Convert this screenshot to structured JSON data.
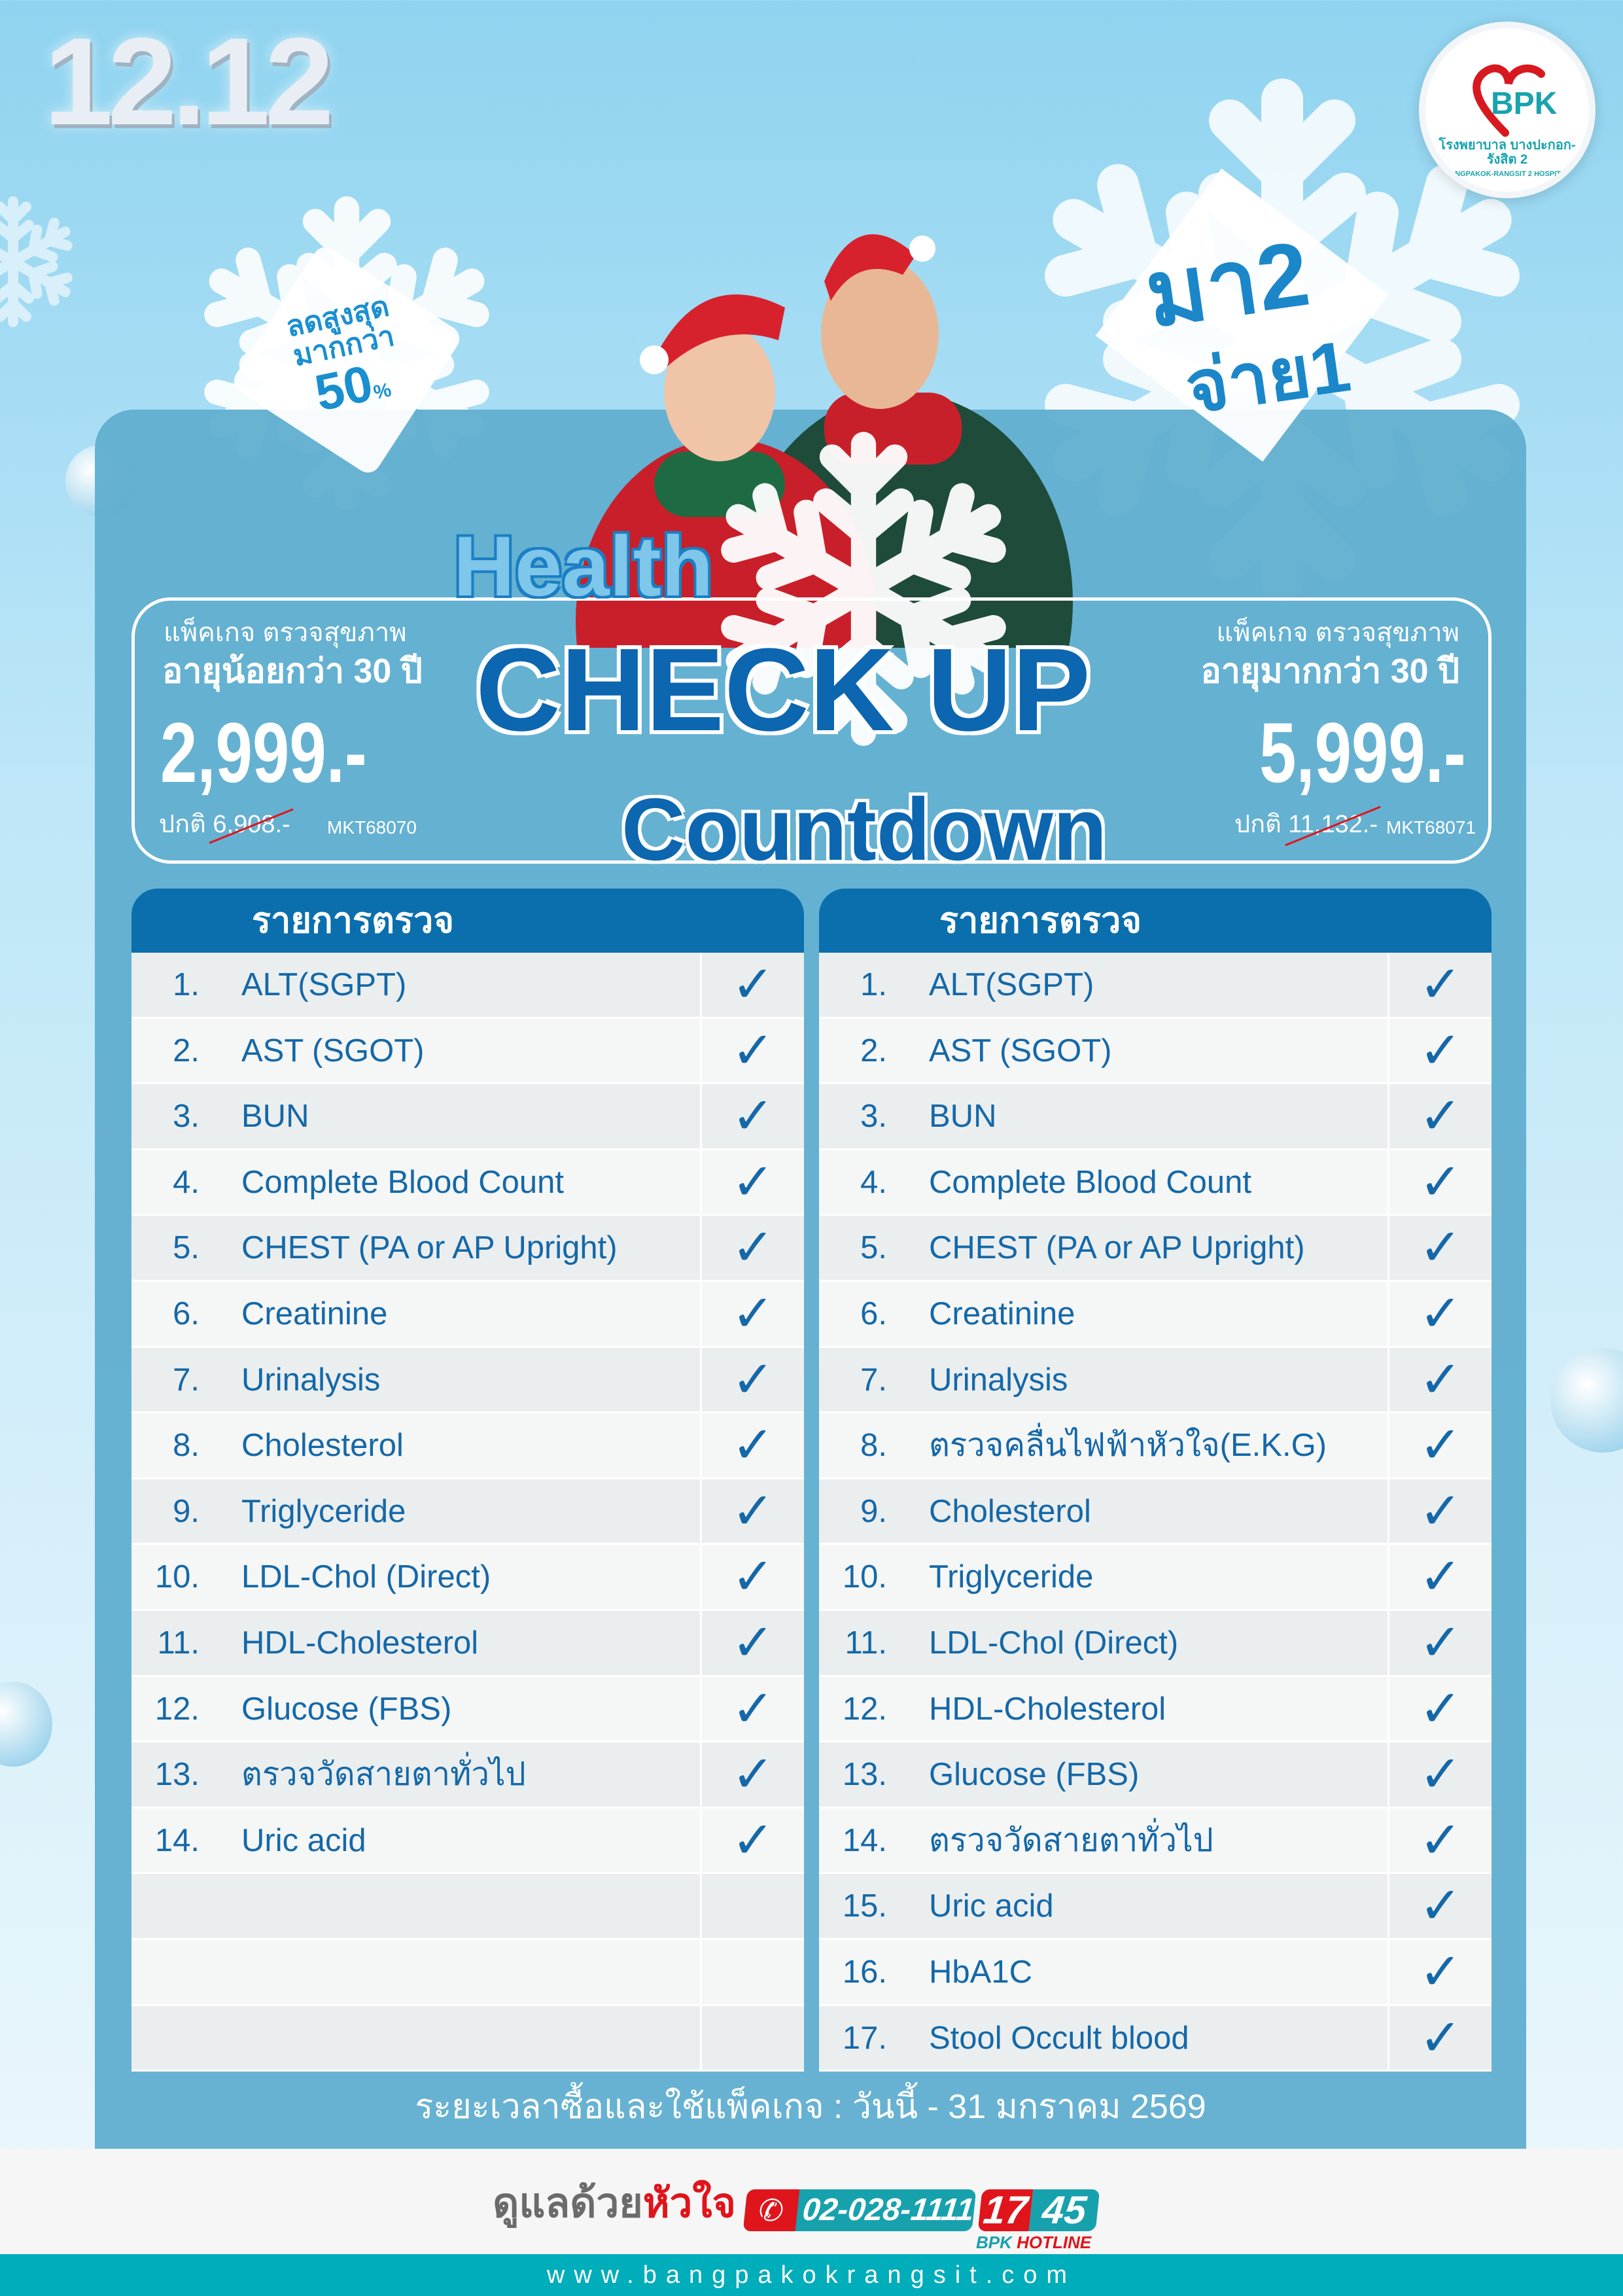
{
  "header": {
    "event": "12.12",
    "logo": {
      "brand": "BPK",
      "name_th": "โรงพยาบาล บางปะกอก-รังสิต 2",
      "name_en": "BANGPAKOK-RANGSIT 2 HOSPITAL"
    }
  },
  "badge_discount": {
    "line1": "ลดสูงสุด",
    "line2": "มากกว่า",
    "value": "50",
    "unit": "%"
  },
  "promo": {
    "line1": "มา2",
    "line2": "จ่าย1"
  },
  "title": {
    "line1": "Health",
    "line2": "CHECK UP",
    "line3": "Countdown"
  },
  "packages": [
    {
      "label": "แพ็คเกจ ตรวจสุขภาพ",
      "age": "อายุน้อยกว่า 30 ปี",
      "price": "2,999.-",
      "normal_label": "ปกติ",
      "normal_price": "6,908.-",
      "code": "MKT68070"
    },
    {
      "label": "แพ็คเกจ ตรวจสุขภาพ",
      "age": "อายุมากกว่า 30 ปี",
      "price": "5,999.-",
      "normal_label": "ปกติ",
      "normal_price": "11,132.-",
      "code": "MKT68071"
    }
  ],
  "tables": [
    {
      "header": "รายการตรวจ",
      "rows": [
        {
          "n": "1.",
          "name": "ALT(SGPT)",
          "check": true
        },
        {
          "n": "2.",
          "name": "AST (SGOT)",
          "check": true
        },
        {
          "n": "3.",
          "name": "BUN",
          "check": true
        },
        {
          "n": "4.",
          "name": "Complete Blood Count",
          "check": true
        },
        {
          "n": "5.",
          "name": "CHEST (PA or AP Upright)",
          "check": true
        },
        {
          "n": "6.",
          "name": "Creatinine",
          "check": true
        },
        {
          "n": "7.",
          "name": "Urinalysis",
          "check": true
        },
        {
          "n": "8.",
          "name": "Cholesterol",
          "check": true
        },
        {
          "n": "9.",
          "name": "Triglyceride",
          "check": true
        },
        {
          "n": "10.",
          "name": "LDL-Chol (Direct)",
          "check": true
        },
        {
          "n": "11.",
          "name": "HDL-Cholesterol",
          "check": true
        },
        {
          "n": "12.",
          "name": "Glucose (FBS)",
          "check": true
        },
        {
          "n": "13.",
          "name": "ตรวจวัดสายตาทั่วไป",
          "check": true
        },
        {
          "n": "14.",
          "name": "Uric acid",
          "check": true
        },
        {
          "n": "",
          "name": "",
          "check": false
        },
        {
          "n": "",
          "name": "",
          "check": false
        },
        {
          "n": "",
          "name": "",
          "check": false
        }
      ]
    },
    {
      "header": "รายการตรวจ",
      "rows": [
        {
          "n": "1.",
          "name": "ALT(SGPT)",
          "check": true
        },
        {
          "n": "2.",
          "name": "AST (SGOT)",
          "check": true
        },
        {
          "n": "3.",
          "name": "BUN",
          "check": true
        },
        {
          "n": "4.",
          "name": "Complete Blood Count",
          "check": true
        },
        {
          "n": "5.",
          "name": "CHEST (PA or AP Upright)",
          "check": true
        },
        {
          "n": "6.",
          "name": "Creatinine",
          "check": true
        },
        {
          "n": "7.",
          "name": "Urinalysis",
          "check": true
        },
        {
          "n": "8.",
          "name": "ตรวจคลื่นไฟฟ้าหัวใจ(E.K.G)",
          "check": true
        },
        {
          "n": "9.",
          "name": "Cholesterol",
          "check": true
        },
        {
          "n": "10.",
          "name": "Triglyceride",
          "check": true
        },
        {
          "n": "11.",
          "name": "LDL-Chol (Direct)",
          "check": true
        },
        {
          "n": "12.",
          "name": "HDL-Cholesterol",
          "check": true
        },
        {
          "n": "13.",
          "name": "Glucose (FBS)",
          "check": true
        },
        {
          "n": "14.",
          "name": "ตรวจวัดสายตาทั่วไป",
          "check": true
        },
        {
          "n": "15.",
          "name": "Uric acid",
          "check": true
        },
        {
          "n": "16.",
          "name": "HbA1C",
          "check": true
        },
        {
          "n": "17.",
          "name": "Stool Occult blood",
          "check": true
        }
      ]
    }
  ],
  "period": "ระยะเวลาซื้อและใช้แพ็คเกจ : วันนี้ - 31 มกราคม 2569",
  "footer": {
    "slogan_a": "ดูแลด้วย",
    "slogan_b": "หัวใจ",
    "phone": "02-028-1111",
    "hotline_a": "17",
    "hotline_b": "45",
    "hotline_label_a": "BPK",
    "hotline_label_b": "HOTLINE",
    "website": "www.bangpakokrangsit.com"
  },
  "colors": {
    "primary": "#0b6fae",
    "panel": "#60aed0",
    "teal": "#00adba",
    "red": "#e0141b"
  }
}
